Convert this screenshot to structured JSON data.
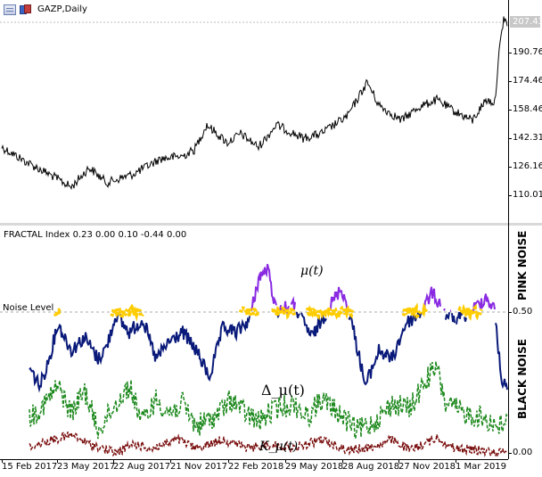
{
  "price_chart": {
    "title": "GAZP,Daily",
    "current_price_label": "207.43",
    "y_ticks": [
      "190.76",
      "174.46",
      "158.46",
      "142.31",
      "126.16",
      "110.01"
    ]
  },
  "indicator": {
    "title": "FRACTAL Index 0.23 0.00 0.10 -0.44 0.00",
    "noise_level_label": "Noise Level",
    "pink_noise_label": "PINK NOISE",
    "black_noise_label": "BLACK NOISE",
    "y_ticks": [
      "0.50",
      "0.00"
    ],
    "annotations": {
      "mu": "μ(t)",
      "delta_mu": "Δ_μ(t)",
      "kappa_mu": "K_μ(t)"
    },
    "colors": {
      "mu_below": "#0a1a7a",
      "mu_above": "#8a2be2",
      "noise_highlight": "#ffcc00",
      "delta": "#1f8a1f",
      "kappa": "#7a0f0f",
      "noise_level_line": "#aaaaaa",
      "price_line": "#000000"
    }
  },
  "x_axis": {
    "labels": [
      "15 Feb 2017",
      "23 May 2017",
      "22 Aug 2017",
      "21 Nov 2017",
      "22 Feb 2018",
      "29 May 2018",
      "28 Aug 2018",
      "27 Nov 2018",
      "1 Mar 2019"
    ]
  },
  "icons": {
    "chart": "chart-window-icon",
    "copy": "symbol-properties-icon"
  }
}
